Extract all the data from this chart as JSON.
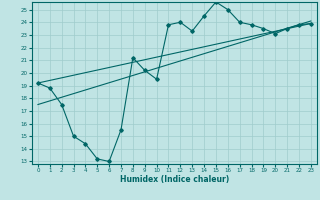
{
  "xlabel": "Humidex (Indice chaleur)",
  "bg_color": "#c0e4e4",
  "grid_color": "#a0cccc",
  "line_color": "#006666",
  "xlim": [
    -0.5,
    23.5
  ],
  "ylim": [
    12.8,
    25.6
  ],
  "yticks": [
    13,
    14,
    15,
    16,
    17,
    18,
    19,
    20,
    21,
    22,
    23,
    24,
    25
  ],
  "xticks": [
    0,
    1,
    2,
    3,
    4,
    5,
    6,
    7,
    8,
    9,
    10,
    11,
    12,
    13,
    14,
    15,
    16,
    17,
    18,
    19,
    20,
    21,
    22,
    23
  ],
  "wavy_x": [
    0,
    1,
    2,
    3,
    4,
    5,
    6,
    7,
    8,
    9,
    10,
    11,
    12,
    13,
    14,
    15,
    16,
    17,
    18,
    19,
    20,
    21,
    22,
    23
  ],
  "wavy_y": [
    19.2,
    18.8,
    17.5,
    15.0,
    14.4,
    13.2,
    13.0,
    15.5,
    21.2,
    20.2,
    19.5,
    23.8,
    24.0,
    23.3,
    24.5,
    25.6,
    25.0,
    24.0,
    23.8,
    23.5,
    23.1,
    23.5,
    23.8,
    23.9
  ],
  "line1_x": [
    0,
    23
  ],
  "line1_y": [
    19.2,
    23.9
  ],
  "line2_x": [
    0,
    23
  ],
  "line2_y": [
    17.5,
    24.1
  ],
  "figsize": [
    3.2,
    2.0
  ],
  "dpi": 100
}
